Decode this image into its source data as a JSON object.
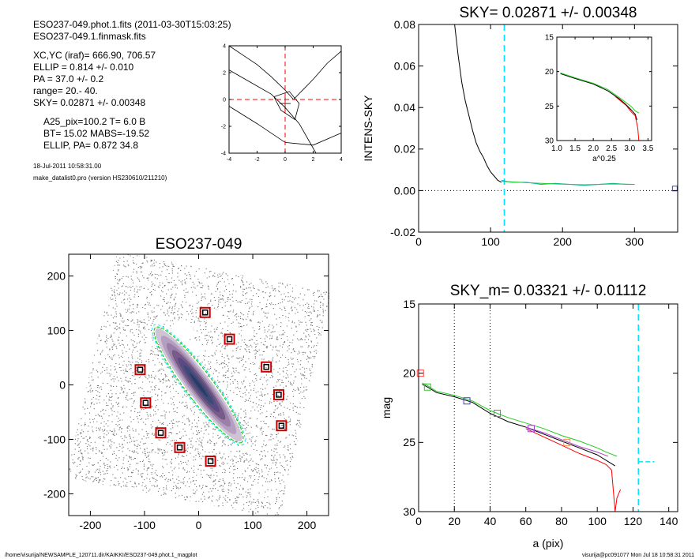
{
  "header": {
    "lines": [
      "ESO237-049.phot.1.fits  (2011-03-30T15:03:25)",
      "ESO237-049.1.finmask.fits",
      "XC,YC (iraf)=   666.90, 706.57",
      "ELLIP = 0.814 +/- 0.010",
      "PA    = 37.0 +/-   0.2",
      "range=  20.-   40.",
      "SKY= 0.02871 +/- 0.00348",
      "A25_pix=100.2   T= 6.0  B",
      "BT=  15.02   MABS=-19.52",
      "ELLIP, PA= 0.872   34.8",
      "18-Jul-2011 10:58:31.00",
      "make_datalist0.pro (version HS230610/211210)"
    ]
  },
  "footer": {
    "path": "/home/visurija/NEWSAMPLE_120711.dir/KAIKKI/ESO237-049.phot.1_magplot",
    "user": "visurija@pc091077  Mon Jul 18 10:58:31 2011"
  },
  "colors": {
    "sky_dash": "#00e5ff",
    "red": "#ff0000",
    "green": "#22cc22",
    "purple": "#aa44cc",
    "blue": "#3344cc",
    "orange": "#ff8844",
    "gray_points": "#777777",
    "galaxy_purple": "#7a5a8a",
    "marker_red": "#cc0000"
  },
  "chart_data": [
    {
      "id": "center_plot",
      "type": "line",
      "title": "",
      "xlim": [
        -4,
        4
      ],
      "ylim": [
        -4,
        4
      ],
      "xticks": [
        -4,
        -2,
        0,
        2,
        4
      ],
      "yticks": [
        -4,
        -2,
        0,
        2,
        4
      ],
      "series": [
        {
          "color": "#000000",
          "x": [
            -4,
            -3,
            -2,
            -1,
            0,
            0.6
          ],
          "y": [
            4,
            3.3,
            2.6,
            1.7,
            0.7,
            0
          ]
        },
        {
          "color": "#000000",
          "x": [
            -4,
            -2.5,
            -1,
            0,
            1,
            2.2
          ],
          "y": [
            2.2,
            1.3,
            0.4,
            -0.6,
            -1.8,
            -4
          ]
        },
        {
          "color": "#000000",
          "x": [
            -4,
            -2,
            0,
            2,
            4
          ],
          "y": [
            -0.5,
            -1.8,
            -3.2,
            -3.4,
            -2.5
          ]
        },
        {
          "color": "#000000",
          "x": [
            0.6,
            2,
            3,
            4
          ],
          "y": [
            0,
            1.5,
            2.7,
            3.6
          ]
        },
        {
          "color": "#000000",
          "x": [
            -0.8,
            0.3,
            1,
            0.7,
            -0.3,
            -0.8
          ],
          "y": [
            0.2,
            0.6,
            -0.3,
            -1.5,
            -0.8,
            0.2
          ]
        },
        {
          "color": "#000000",
          "x": [
            0,
            0
          ],
          "y": [
            -0.9,
            0.3
          ]
        },
        {
          "color": "#000000",
          "x": [
            -0.4,
            0.4
          ],
          "y": [
            -0.3,
            -0.3
          ]
        }
      ],
      "crosshair": {
        "x": 0,
        "y": 0,
        "color": "#ff0000"
      }
    },
    {
      "id": "intens_sky",
      "type": "line",
      "title": "SKY= 0.02871 +/- 0.00348",
      "xlabel": "",
      "ylabel": "INTENS-SKY",
      "xlim": [
        0,
        360
      ],
      "ylim": [
        -0.02,
        0.08
      ],
      "xticks": [
        0,
        100,
        200,
        300
      ],
      "yticks": [
        -0.02,
        0,
        0.02,
        0.04,
        0.06,
        0.08
      ],
      "ytick_labels": [
        "-0.02",
        "0.00",
        "0.02",
        "0.04",
        "0.06",
        "0.08"
      ],
      "series": [
        {
          "color": "#000000",
          "x": [
            50,
            55,
            60,
            65,
            70,
            75,
            80,
            85,
            90,
            95,
            100,
            105,
            110,
            115
          ],
          "y": [
            0.08,
            0.065,
            0.052,
            0.043,
            0.036,
            0.029,
            0.023,
            0.019,
            0.016,
            0.012,
            0.009,
            0.007,
            0.005,
            0.004
          ]
        },
        {
          "color": "#00aacc",
          "x": [
            115,
            130,
            150,
            170,
            190,
            210,
            230,
            250,
            270,
            290,
            300
          ],
          "y": [
            0.005,
            0.004,
            0.004,
            0.003,
            0.0035,
            0.003,
            0.0025,
            0.003,
            0.0035,
            0.003,
            0.003
          ]
        },
        {
          "color": "#22cc22",
          "x": [
            115,
            150,
            190,
            230,
            270,
            300
          ],
          "y": [
            0.0045,
            0.0038,
            0.0032,
            0.0028,
            0.0032,
            0.003
          ]
        }
      ],
      "hlines": [
        0
      ],
      "vlines": [
        {
          "x": 119,
          "color": "#00e5ff"
        }
      ],
      "markers": [
        {
          "x": 356,
          "y": 0.001,
          "color": "#3344cc"
        }
      ],
      "inset": {
        "xlabel": "a^0.25",
        "xlim": [
          1.0,
          3.6
        ],
        "ylim": [
          30,
          15
        ],
        "xticks": [
          1.0,
          1.5,
          2.0,
          2.5,
          3.0,
          3.5
        ],
        "xtick_labels": [
          "1.0",
          "1.5",
          "2.0",
          "2.5",
          "3.0",
          "3.5"
        ],
        "yticks": [
          15,
          20,
          25,
          30
        ],
        "series": [
          {
            "color": "#000000",
            "x": [
              1.1,
              1.5,
              2.0,
              2.4,
              2.7,
              2.9,
              3.05,
              3.15,
              3.2
            ],
            "y": [
              20.3,
              21.0,
              21.8,
              22.8,
              23.9,
              24.8,
              25.6,
              26.2,
              27.0
            ]
          },
          {
            "color": "#22cc22",
            "x": [
              1.1,
              1.5,
              2.0,
              2.4,
              2.7,
              2.9,
              3.05,
              3.15,
              3.25
            ],
            "y": [
              20.2,
              20.9,
              21.7,
              22.6,
              23.7,
              24.5,
              25.1,
              25.7,
              26.0
            ]
          },
          {
            "color": "#ff0000",
            "x": [
              2.6,
              2.9,
              3.05,
              3.15,
              3.22,
              3.25
            ],
            "y": [
              23.6,
              24.9,
              25.9,
              26.4,
              28.2,
              30.0
            ]
          }
        ]
      }
    },
    {
      "id": "galaxy_image",
      "type": "scatter",
      "title": "ESO237-049",
      "xlim": [
        -240,
        240
      ],
      "ylim": [
        -240,
        240
      ],
      "xticks": [
        -200,
        -100,
        0,
        100,
        200
      ],
      "yticks": [
        -200,
        -100,
        0,
        100,
        200
      ],
      "galaxy": {
        "cx": 0,
        "cy": 0,
        "major": 130,
        "ratio": 0.17,
        "angle_deg": 53
      },
      "mask_markers": [
        [
          12,
          133
        ],
        [
          57,
          84
        ],
        [
          125,
          33
        ],
        [
          -108,
          28
        ],
        [
          148,
          -18
        ],
        [
          -98,
          -33
        ],
        [
          153,
          -75
        ],
        [
          -70,
          -88
        ],
        [
          -35,
          -115
        ],
        [
          22,
          -140
        ]
      ]
    },
    {
      "id": "mag_profile",
      "type": "line",
      "title": "SKY_m=  0.03321 +/- 0.01112",
      "xlabel": "a (pix)",
      "ylabel": "mag",
      "xlim": [
        0,
        145
      ],
      "ylim": [
        30,
        15
      ],
      "xticks": [
        0,
        20,
        40,
        60,
        80,
        100,
        120,
        140
      ],
      "yticks": [
        15,
        20,
        25,
        30
      ],
      "series": [
        {
          "color": "#000000",
          "x": [
            2,
            5,
            10,
            20,
            30,
            40,
            50,
            60,
            70,
            80,
            90,
            100,
            105,
            110
          ],
          "y": [
            20.8,
            21.0,
            21.4,
            21.7,
            22.1,
            22.9,
            23.5,
            23.9,
            24.4,
            24.9,
            25.4,
            25.9,
            26.3,
            26.7
          ]
        },
        {
          "color": "#22cc22",
          "x": [
            2,
            5,
            10,
            20,
            30,
            40,
            50,
            60,
            70,
            80,
            90,
            100,
            105,
            111
          ],
          "y": [
            20.7,
            20.9,
            21.3,
            21.6,
            22.0,
            22.7,
            23.2,
            23.6,
            24.0,
            24.5,
            24.9,
            25.4,
            25.7,
            26.0
          ]
        },
        {
          "color": "#ff0000",
          "x": [
            60,
            70,
            80,
            90,
            100,
            105,
            108,
            110,
            111,
            113
          ],
          "y": [
            24.0,
            24.6,
            25.2,
            25.8,
            26.3,
            26.6,
            27.0,
            30.0,
            29.0,
            28.4
          ]
        },
        {
          "color": "#aa44cc",
          "x": [
            60,
            70,
            80,
            90,
            100,
            106
          ],
          "y": [
            23.9,
            24.3,
            24.8,
            25.3,
            25.7,
            26.0
          ]
        }
      ],
      "vlines": [
        {
          "x": 20,
          "color": "#000000",
          "style": "dotted"
        },
        {
          "x": 40,
          "color": "#000000",
          "style": "dotted"
        },
        {
          "x": 123,
          "color": "#00e5ff",
          "style": "dashed"
        }
      ],
      "sky_segment": {
        "x": [
          123,
          132
        ],
        "y": 26.4,
        "color": "#00e5ff"
      },
      "markers": [
        {
          "x": 1,
          "y": 20.0,
          "color": "#ff4444"
        },
        {
          "x": 5,
          "y": 21.0,
          "color": "#22cc22"
        },
        {
          "x": 27,
          "y": 22.0,
          "color": "#3344cc"
        },
        {
          "x": 44,
          "y": 22.9,
          "color": "#00aacc"
        },
        {
          "x": 63,
          "y": 24.0,
          "color": "#aa44cc"
        },
        {
          "x": 83,
          "y": 25.0,
          "color": "#ff8844"
        }
      ]
    }
  ]
}
